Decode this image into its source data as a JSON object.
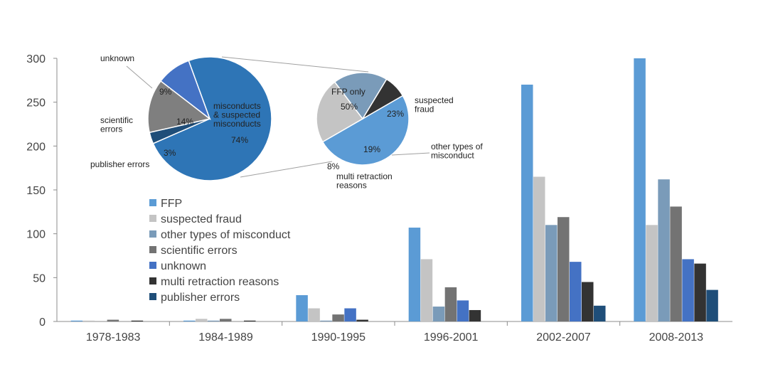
{
  "chart_data": [
    {
      "type": "bar",
      "categories": [
        "1978-1983",
        "1984-1989",
        "1990-1995",
        "1996-2001",
        "2002-2007",
        "2008-2013"
      ],
      "ylim": [
        0,
        300
      ],
      "yticks": [
        0,
        50,
        100,
        150,
        200,
        250,
        300
      ],
      "grid": false,
      "legend_position": "left-center",
      "series": [
        {
          "name": "FFP",
          "color": "#5b9bd5",
          "values": [
            1,
            1,
            30,
            107,
            270,
            300
          ]
        },
        {
          "name": "suspected fraud",
          "color": "#c4c4c4",
          "values": [
            1,
            3,
            15,
            71,
            165,
            110
          ]
        },
        {
          "name": "other types of misconduct",
          "color": "#7a9bb9",
          "values": [
            0,
            1,
            1,
            17,
            110,
            162
          ]
        },
        {
          "name": "scientific errors",
          "color": "#737373",
          "values": [
            2,
            3,
            8,
            39,
            119,
            131
          ]
        },
        {
          "name": "unknown",
          "color": "#4472c4",
          "values": [
            0,
            0,
            15,
            24,
            68,
            71
          ]
        },
        {
          "name": "multi retraction reasons",
          "color": "#333333",
          "values": [
            1,
            1,
            2,
            13,
            45,
            66
          ]
        },
        {
          "name": "publisher errors",
          "color": "#1f4e79",
          "values": [
            0,
            0,
            0,
            0,
            18,
            36
          ]
        }
      ]
    },
    {
      "type": "pie",
      "slices": [
        {
          "label": "misconducts\n& suspected\nmisconducts",
          "value": 74,
          "pct": "74%",
          "color": "#2e75b6"
        },
        {
          "label": "publisher errors",
          "value": 3,
          "pct": "3%",
          "color": "#1f4e79"
        },
        {
          "label": "scientific\nerrors",
          "value": 14,
          "pct": "14%",
          "color": "#7f7f7f"
        },
        {
          "label": "unknown",
          "value": 9,
          "pct": "9%",
          "color": "#4472c4"
        }
      ]
    },
    {
      "type": "pie",
      "slices": [
        {
          "label": "FFP only",
          "value": 50,
          "pct": "50%",
          "color": "#5b9bd5"
        },
        {
          "label": "suspected\nfraud",
          "value": 23,
          "pct": "23%",
          "color": "#c4c4c4"
        },
        {
          "label": "other types of\nmisconduct",
          "value": 19,
          "pct": "19%",
          "color": "#7a9bb9"
        },
        {
          "label": "multi retraction\nreasons",
          "value": 8,
          "pct": "8%",
          "color": "#333333"
        }
      ]
    }
  ]
}
